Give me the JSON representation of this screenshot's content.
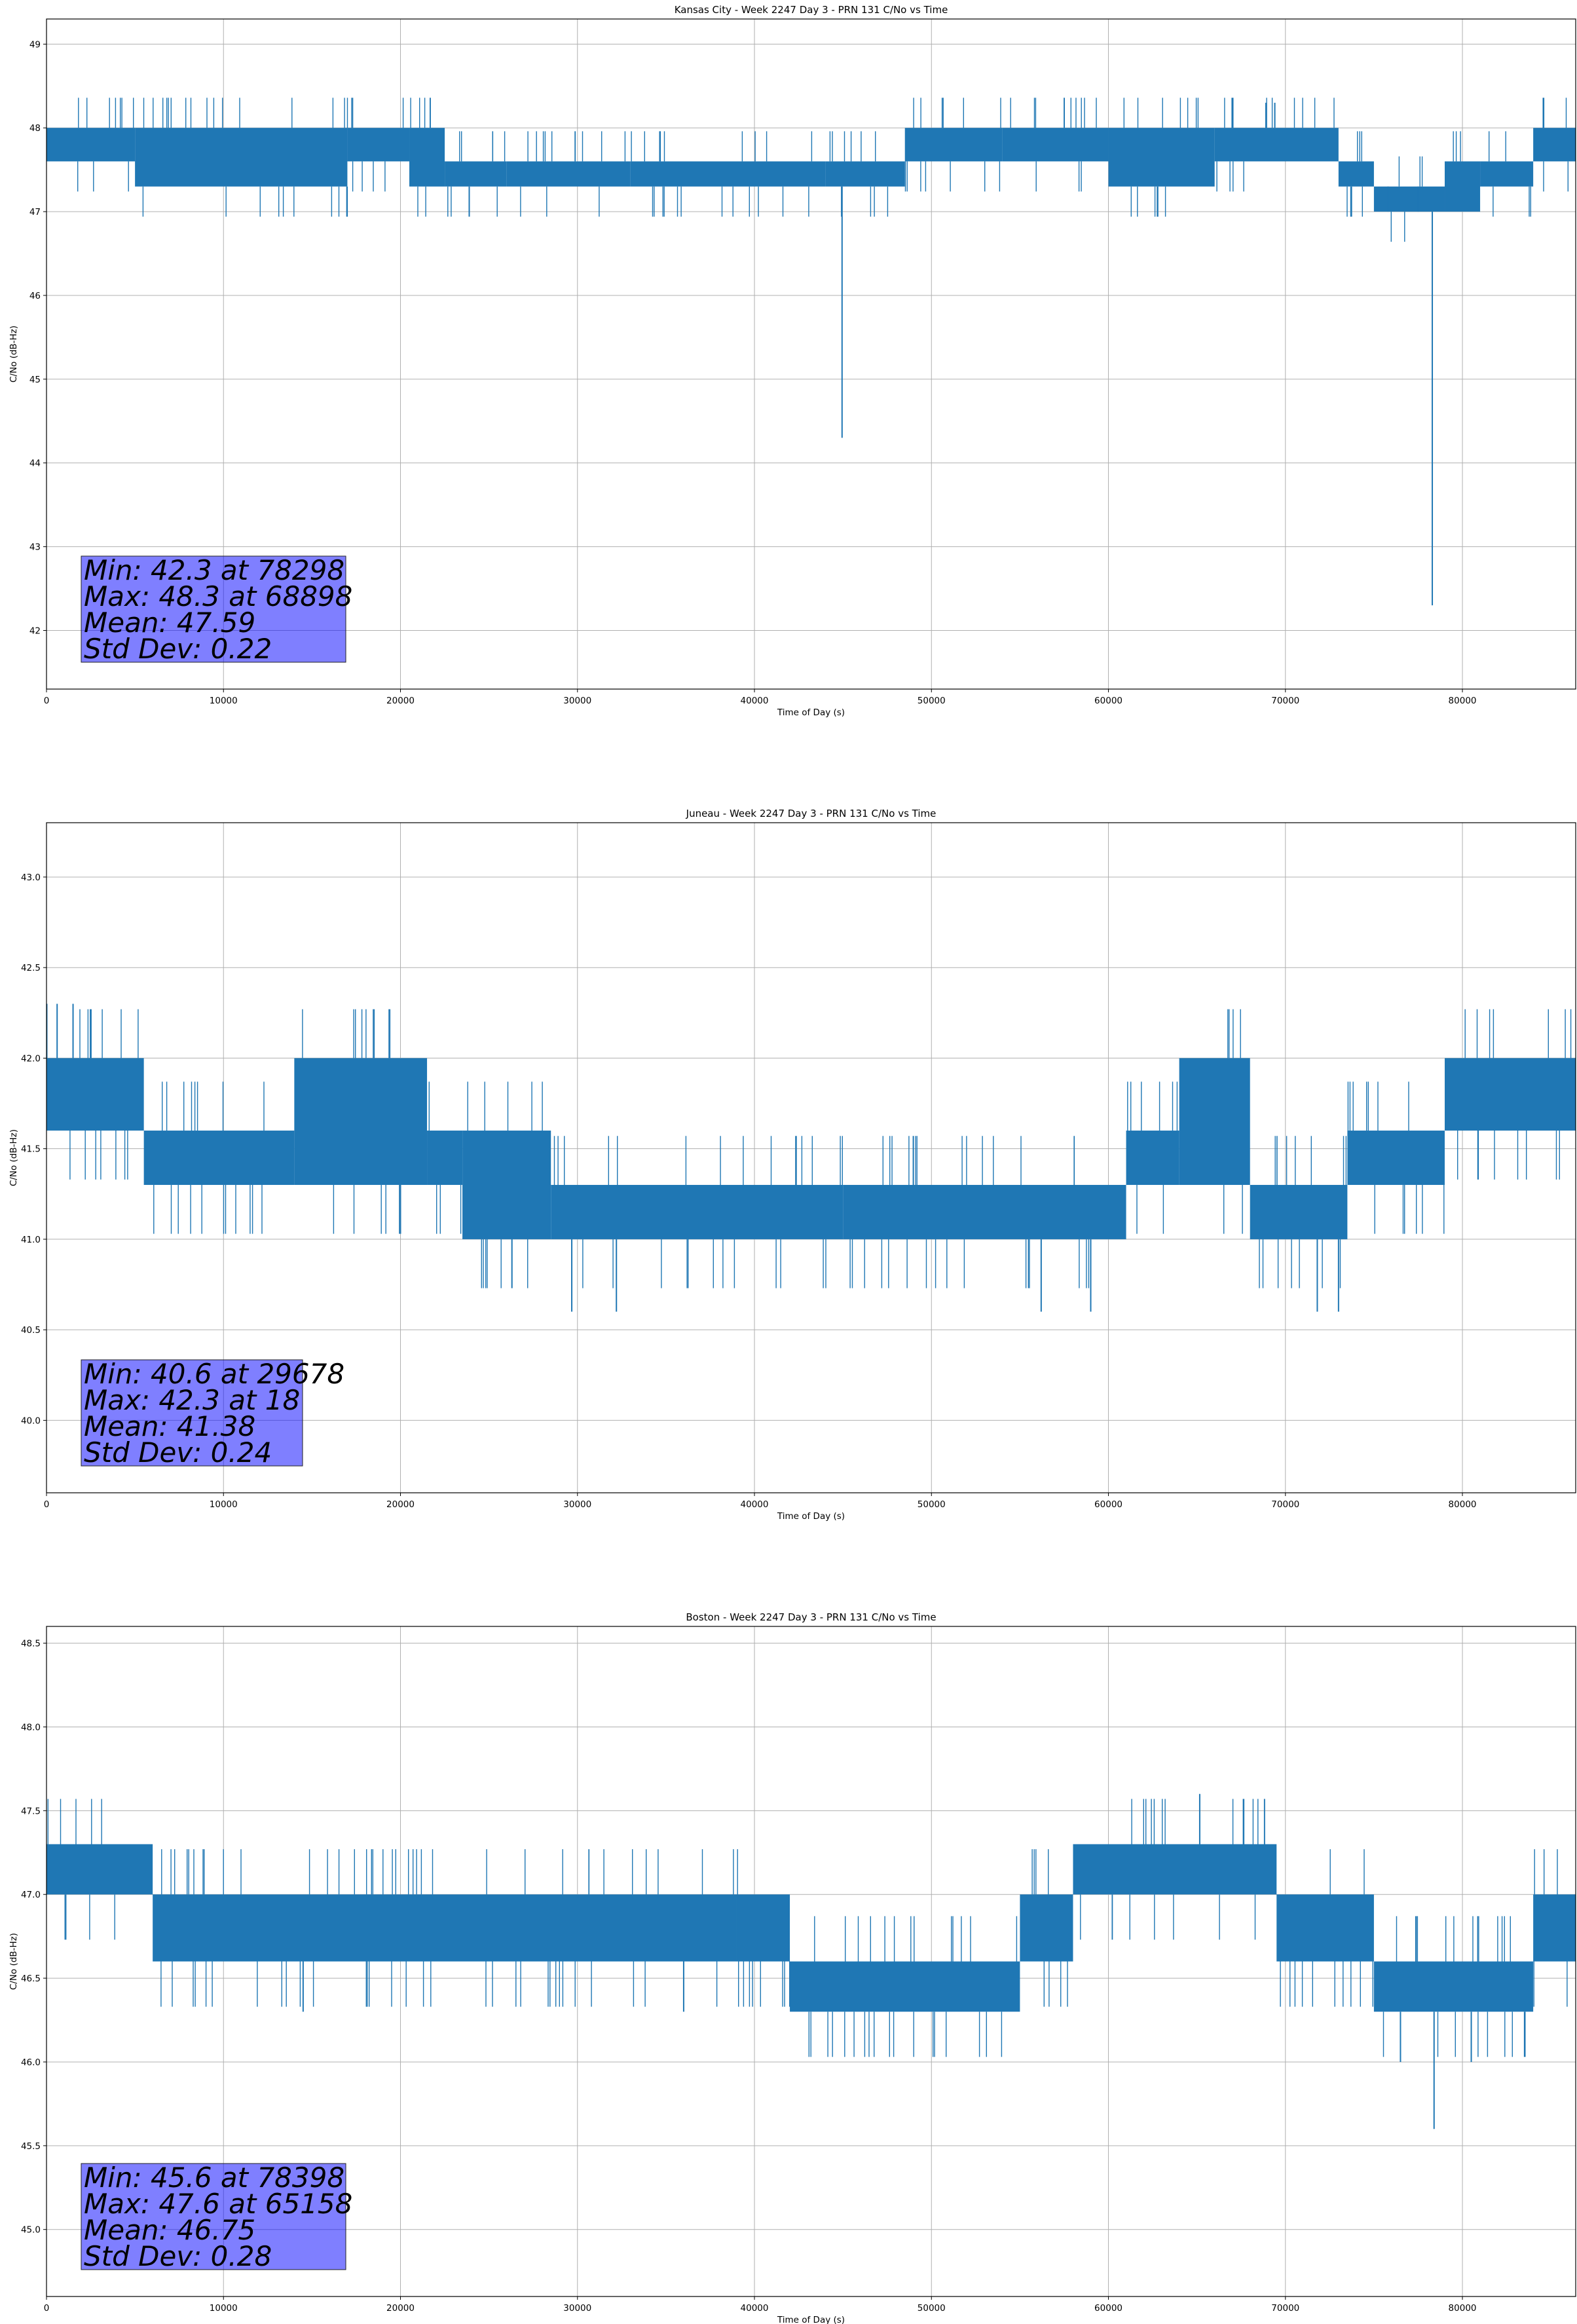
{
  "chart_data": [
    {
      "type": "line",
      "title": "Kansas City - Week 2247 Day 3 - PRN 131 C/No vs Time",
      "xlabel": "Time of Day (s)",
      "ylabel": "C/No (dB-Hz)",
      "xlim": [
        0,
        86400
      ],
      "ylim": [
        41.3,
        49.3
      ],
      "xticks": [
        0,
        10000,
        20000,
        30000,
        40000,
        50000,
        60000,
        70000,
        80000
      ],
      "yticks": [
        42,
        43,
        44,
        45,
        46,
        47,
        48,
        49
      ],
      "grid": true,
      "color": "#1f77b4",
      "stats_box": [
        "Min: 42.3 at 78298",
        "Max: 48.3 at 68898",
        "Mean: 47.59",
        "Std Dev: 0.22"
      ],
      "band_segments": [
        {
          "x": [
            0,
            5000
          ],
          "y": [
            47.6,
            48.0
          ]
        },
        {
          "x": [
            5000,
            17000
          ],
          "y": [
            47.3,
            48.0
          ]
        },
        {
          "x": [
            17000,
            20500
          ],
          "y": [
            47.6,
            48.0
          ]
        },
        {
          "x": [
            20500,
            22500
          ],
          "y": [
            47.3,
            48.0
          ]
        },
        {
          "x": [
            22500,
            26000
          ],
          "y": [
            47.3,
            47.6
          ]
        },
        {
          "x": [
            26000,
            33000
          ],
          "y": [
            47.3,
            47.6
          ]
        },
        {
          "x": [
            33000,
            44000
          ],
          "y": [
            47.3,
            47.6
          ]
        },
        {
          "x": [
            44000,
            48500
          ],
          "y": [
            47.3,
            47.6
          ]
        },
        {
          "x": [
            48500,
            54000
          ],
          "y": [
            47.6,
            48.0
          ]
        },
        {
          "x": [
            54000,
            60000
          ],
          "y": [
            47.6,
            48.0
          ]
        },
        {
          "x": [
            60000,
            66000
          ],
          "y": [
            47.3,
            48.0
          ]
        },
        {
          "x": [
            66000,
            73000
          ],
          "y": [
            47.6,
            48.0
          ]
        },
        {
          "x": [
            73000,
            75000
          ],
          "y": [
            47.3,
            47.6
          ]
        },
        {
          "x": [
            75000,
            79000
          ],
          "y": [
            47.0,
            47.3
          ]
        },
        {
          "x": [
            79000,
            81000
          ],
          "y": [
            47.0,
            47.6
          ]
        },
        {
          "x": [
            81000,
            84000
          ],
          "y": [
            47.3,
            47.6
          ]
        },
        {
          "x": [
            84000,
            86400
          ],
          "y": [
            47.6,
            48.0
          ]
        }
      ],
      "spikes": [
        {
          "x": 44950,
          "y": 44.3
        },
        {
          "x": 78298,
          "y": 42.3
        },
        {
          "x": 68898,
          "y": 48.3
        },
        {
          "x": 69400,
          "y": 48.3
        },
        {
          "x": 75800,
          "y": 47.0
        },
        {
          "x": 77500,
          "y": 47.0
        }
      ]
    },
    {
      "type": "line",
      "title": "Juneau - Week 2247 Day 3 - PRN 131 C/No vs Time",
      "xlabel": "Time of Day (s)",
      "ylabel": "C/No (dB-Hz)",
      "xlim": [
        0,
        86400
      ],
      "ylim": [
        39.6,
        43.3
      ],
      "xticks": [
        0,
        10000,
        20000,
        30000,
        40000,
        50000,
        60000,
        70000,
        80000
      ],
      "yticks": [
        40.0,
        40.5,
        41.0,
        41.5,
        42.0,
        42.5,
        43.0
      ],
      "grid": true,
      "color": "#1f77b4",
      "stats_box": [
        "Min: 40.6 at 29678",
        "Max: 42.3 at 18",
        "Mean: 41.38",
        "Std Dev: 0.24"
      ],
      "band_segments": [
        {
          "x": [
            0,
            5500
          ],
          "y": [
            41.6,
            42.0
          ]
        },
        {
          "x": [
            5500,
            14000
          ],
          "y": [
            41.3,
            41.6
          ]
        },
        {
          "x": [
            14000,
            21500
          ],
          "y": [
            41.3,
            42.0
          ]
        },
        {
          "x": [
            21500,
            23500
          ],
          "y": [
            41.3,
            41.6
          ]
        },
        {
          "x": [
            23500,
            28500
          ],
          "y": [
            41.0,
            41.6
          ]
        },
        {
          "x": [
            28500,
            45000
          ],
          "y": [
            41.0,
            41.3
          ]
        },
        {
          "x": [
            45000,
            61000
          ],
          "y": [
            41.0,
            41.3
          ]
        },
        {
          "x": [
            61000,
            64000
          ],
          "y": [
            41.3,
            41.6
          ]
        },
        {
          "x": [
            64000,
            68000
          ],
          "y": [
            41.3,
            42.0
          ]
        },
        {
          "x": [
            68000,
            73500
          ],
          "y": [
            41.0,
            41.3
          ]
        },
        {
          "x": [
            73500,
            79000
          ],
          "y": [
            41.3,
            41.6
          ]
        },
        {
          "x": [
            79000,
            86400
          ],
          "y": [
            41.6,
            42.0
          ]
        }
      ],
      "spikes": [
        {
          "x": 18,
          "y": 42.3
        },
        {
          "x": 600,
          "y": 42.3
        },
        {
          "x": 1500,
          "y": 42.3
        },
        {
          "x": 29678,
          "y": 40.6
        },
        {
          "x": 32200,
          "y": 40.6
        },
        {
          "x": 56200,
          "y": 40.6
        },
        {
          "x": 59000,
          "y": 40.6
        },
        {
          "x": 71800,
          "y": 40.6
        },
        {
          "x": 73000,
          "y": 40.6
        }
      ]
    },
    {
      "type": "line",
      "title": "Boston - Week 2247 Day 3 - PRN 131 C/No vs Time",
      "xlabel": "Time of Day (s)",
      "ylabel": "C/No (dB-Hz)",
      "xlim": [
        0,
        86400
      ],
      "ylim": [
        44.6,
        48.6
      ],
      "xticks": [
        0,
        10000,
        20000,
        30000,
        40000,
        50000,
        60000,
        70000,
        80000
      ],
      "yticks": [
        45.0,
        45.5,
        46.0,
        46.5,
        47.0,
        47.5,
        48.0,
        48.5
      ],
      "grid": true,
      "color": "#1f77b4",
      "stats_box": [
        "Min: 45.6 at 78398",
        "Max: 47.6 at 65158",
        "Mean: 46.75",
        "Std Dev: 0.28"
      ],
      "band_segments": [
        {
          "x": [
            0,
            6000
          ],
          "y": [
            47.0,
            47.3
          ]
        },
        {
          "x": [
            6000,
            39000
          ],
          "y": [
            46.6,
            47.0
          ]
        },
        {
          "x": [
            39000,
            42000
          ],
          "y": [
            46.6,
            47.0
          ]
        },
        {
          "x": [
            42000,
            55000
          ],
          "y": [
            46.3,
            46.6
          ]
        },
        {
          "x": [
            55000,
            58000
          ],
          "y": [
            46.6,
            47.0
          ]
        },
        {
          "x": [
            58000,
            69500
          ],
          "y": [
            47.0,
            47.3
          ]
        },
        {
          "x": [
            69500,
            75000
          ],
          "y": [
            46.6,
            47.0
          ]
        },
        {
          "x": [
            75000,
            84000
          ],
          "y": [
            46.3,
            46.6
          ]
        },
        {
          "x": [
            84000,
            86400
          ],
          "y": [
            46.6,
            47.0
          ]
        }
      ],
      "spikes": [
        {
          "x": 65158,
          "y": 47.6
        },
        {
          "x": 78398,
          "y": 45.6
        },
        {
          "x": 76500,
          "y": 46.0
        },
        {
          "x": 80500,
          "y": 46.0
        },
        {
          "x": 14500,
          "y": 46.3
        },
        {
          "x": 36000,
          "y": 46.3
        }
      ]
    }
  ]
}
